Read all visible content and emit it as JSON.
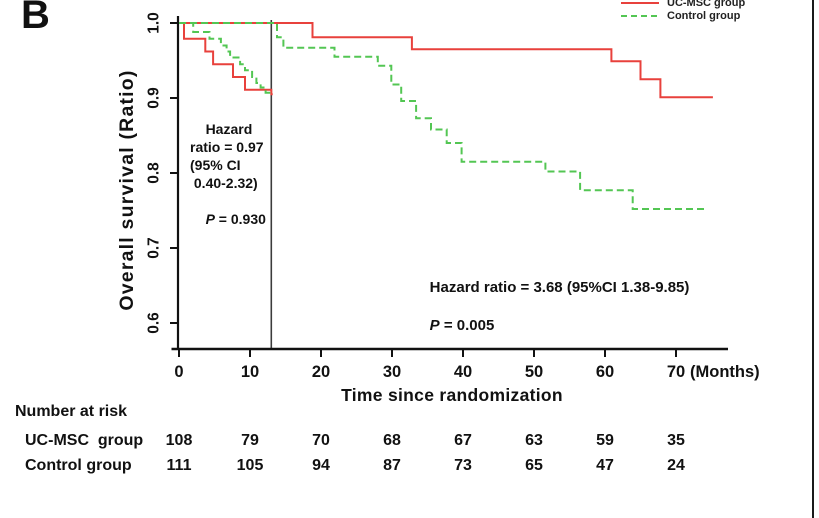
{
  "figure": {
    "panel_label": "B",
    "legend": {
      "items": [
        {
          "label": "UC-MSC group",
          "color": "#e8413c",
          "line_style": "solid"
        },
        {
          "label": "Control group",
          "color": "#53c653",
          "line_style": "dashed"
        }
      ]
    },
    "annotations": {
      "pre_landmark": {
        "lines": "Hazard\nratio = 0.97\n(95% CI\n 0.40-2.32)",
        "p_label": "P",
        "p_value": " = 0.930"
      },
      "post_landmark": {
        "line": "Hazard ratio = 3.68 (95%CI 1.38-9.85)",
        "p_label": "P",
        "p_value": " = 0.005"
      }
    },
    "risk_table": {
      "title": "Number at risk",
      "rows": [
        {
          "label": "UC-MSC  group",
          "values": [
            "108",
            "79",
            "70",
            "68",
            "67",
            "63",
            "59",
            "35"
          ]
        },
        {
          "label": "Control group",
          "values": [
            "111",
            "105",
            "94",
            "87",
            "73",
            "65",
            "47",
            "24"
          ]
        }
      ]
    }
  },
  "chart_data": {
    "type": "line",
    "subtype": "kaplan_meier_landmark_step",
    "title": "",
    "xlabel": "Time since randomization",
    "x_unit_label": "(Months)",
    "ylabel": "Overall survival (Ratio)",
    "x_ticks": [
      0,
      10,
      20,
      30,
      40,
      50,
      60,
      70
    ],
    "y_ticks": [
      "1.0",
      "0.9",
      "0.8",
      "0.7",
      "0.6"
    ],
    "xlim": [
      0,
      77.5
    ],
    "ylim": [
      0.565,
      1.0
    ],
    "grid": false,
    "legend_position": "top-right",
    "landmark_month": 13,
    "series": [
      {
        "name": "UC-MSC group",
        "color": "#e8413c",
        "dashed": false,
        "pre_landmark_steps": [
          [
            0,
            1.0
          ],
          [
            0.7,
            0.979
          ],
          [
            3.7,
            0.962
          ],
          [
            4.8,
            0.945
          ],
          [
            7.6,
            0.928
          ],
          [
            9.3,
            0.911
          ],
          [
            13,
            0.905
          ]
        ],
        "pre_end_month": 13.2,
        "post_landmark_steps": [
          [
            0,
            1.0
          ],
          [
            18.8,
            0.981
          ],
          [
            32.8,
            0.965
          ],
          [
            60.9,
            0.949
          ],
          [
            65,
            0.925
          ],
          [
            67.8,
            0.901
          ]
        ],
        "post_end_month": 75.2
      },
      {
        "name": "Control group",
        "color": "#53c653",
        "dashed": true,
        "pre_landmark_steps": [
          [
            0,
            1.0
          ],
          [
            2,
            0.988
          ],
          [
            4.3,
            0.979
          ],
          [
            5.9,
            0.97
          ],
          [
            6.7,
            0.962
          ],
          [
            7.2,
            0.954
          ],
          [
            8.6,
            0.945
          ],
          [
            9.3,
            0.937
          ],
          [
            10.3,
            0.928
          ],
          [
            10.9,
            0.92
          ],
          [
            11.5,
            0.914
          ],
          [
            12.2,
            0.907
          ]
        ],
        "pre_end_month": 13.1,
        "post_landmark_steps": [
          [
            0,
            1.0
          ],
          [
            13.8,
            0.981
          ],
          [
            14.7,
            0.967
          ],
          [
            21.9,
            0.955
          ],
          [
            28,
            0.943
          ],
          [
            29.9,
            0.918
          ],
          [
            31.3,
            0.896
          ],
          [
            33.4,
            0.873
          ],
          [
            35.5,
            0.858
          ],
          [
            37.7,
            0.84
          ],
          [
            39.8,
            0.815
          ],
          [
            51.6,
            0.802
          ],
          [
            56.5,
            0.777
          ],
          [
            63.9,
            0.752
          ]
        ],
        "post_end_month": 74.3
      }
    ]
  }
}
